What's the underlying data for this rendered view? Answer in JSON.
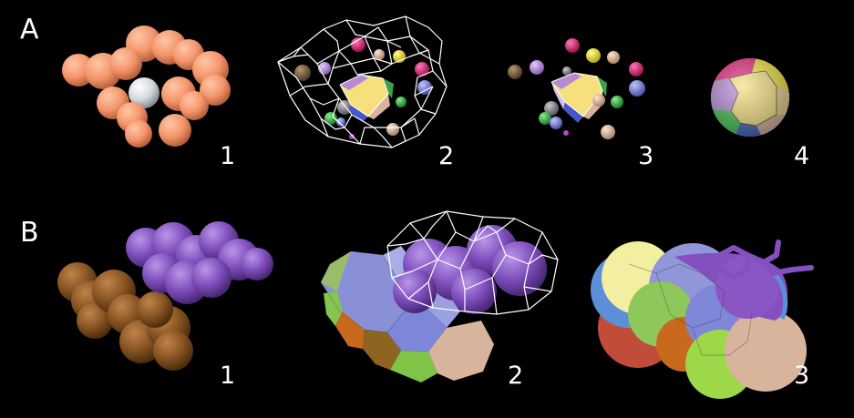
{
  "panel_a": {
    "label": "A",
    "numbers": [
      "1",
      "2",
      "3",
      "4"
    ]
  },
  "panel_b": {
    "label": "B",
    "numbers": [
      "1",
      "2",
      "3"
    ]
  },
  "colors": {
    "background": "#000000",
    "salmon_atom": "#f4956b",
    "central_atom": "#d9dde3",
    "purple_molecule": "#8a55c0",
    "brown_molecule": "#8a5623",
    "voronoi_cell_yellow": "#f7e07a",
    "voronoi_cell_lilac": "#b48ad6",
    "voronoi_cell_blue": "#7d86d8",
    "voronoi_cell_green": "#7ec447",
    "voronoi_cell_tan": "#d9b49c",
    "voronoi_cell_magenta": "#e0207a",
    "voronoi_cell_orange": "#c8691d",
    "wireframe": "#ffffff"
  }
}
